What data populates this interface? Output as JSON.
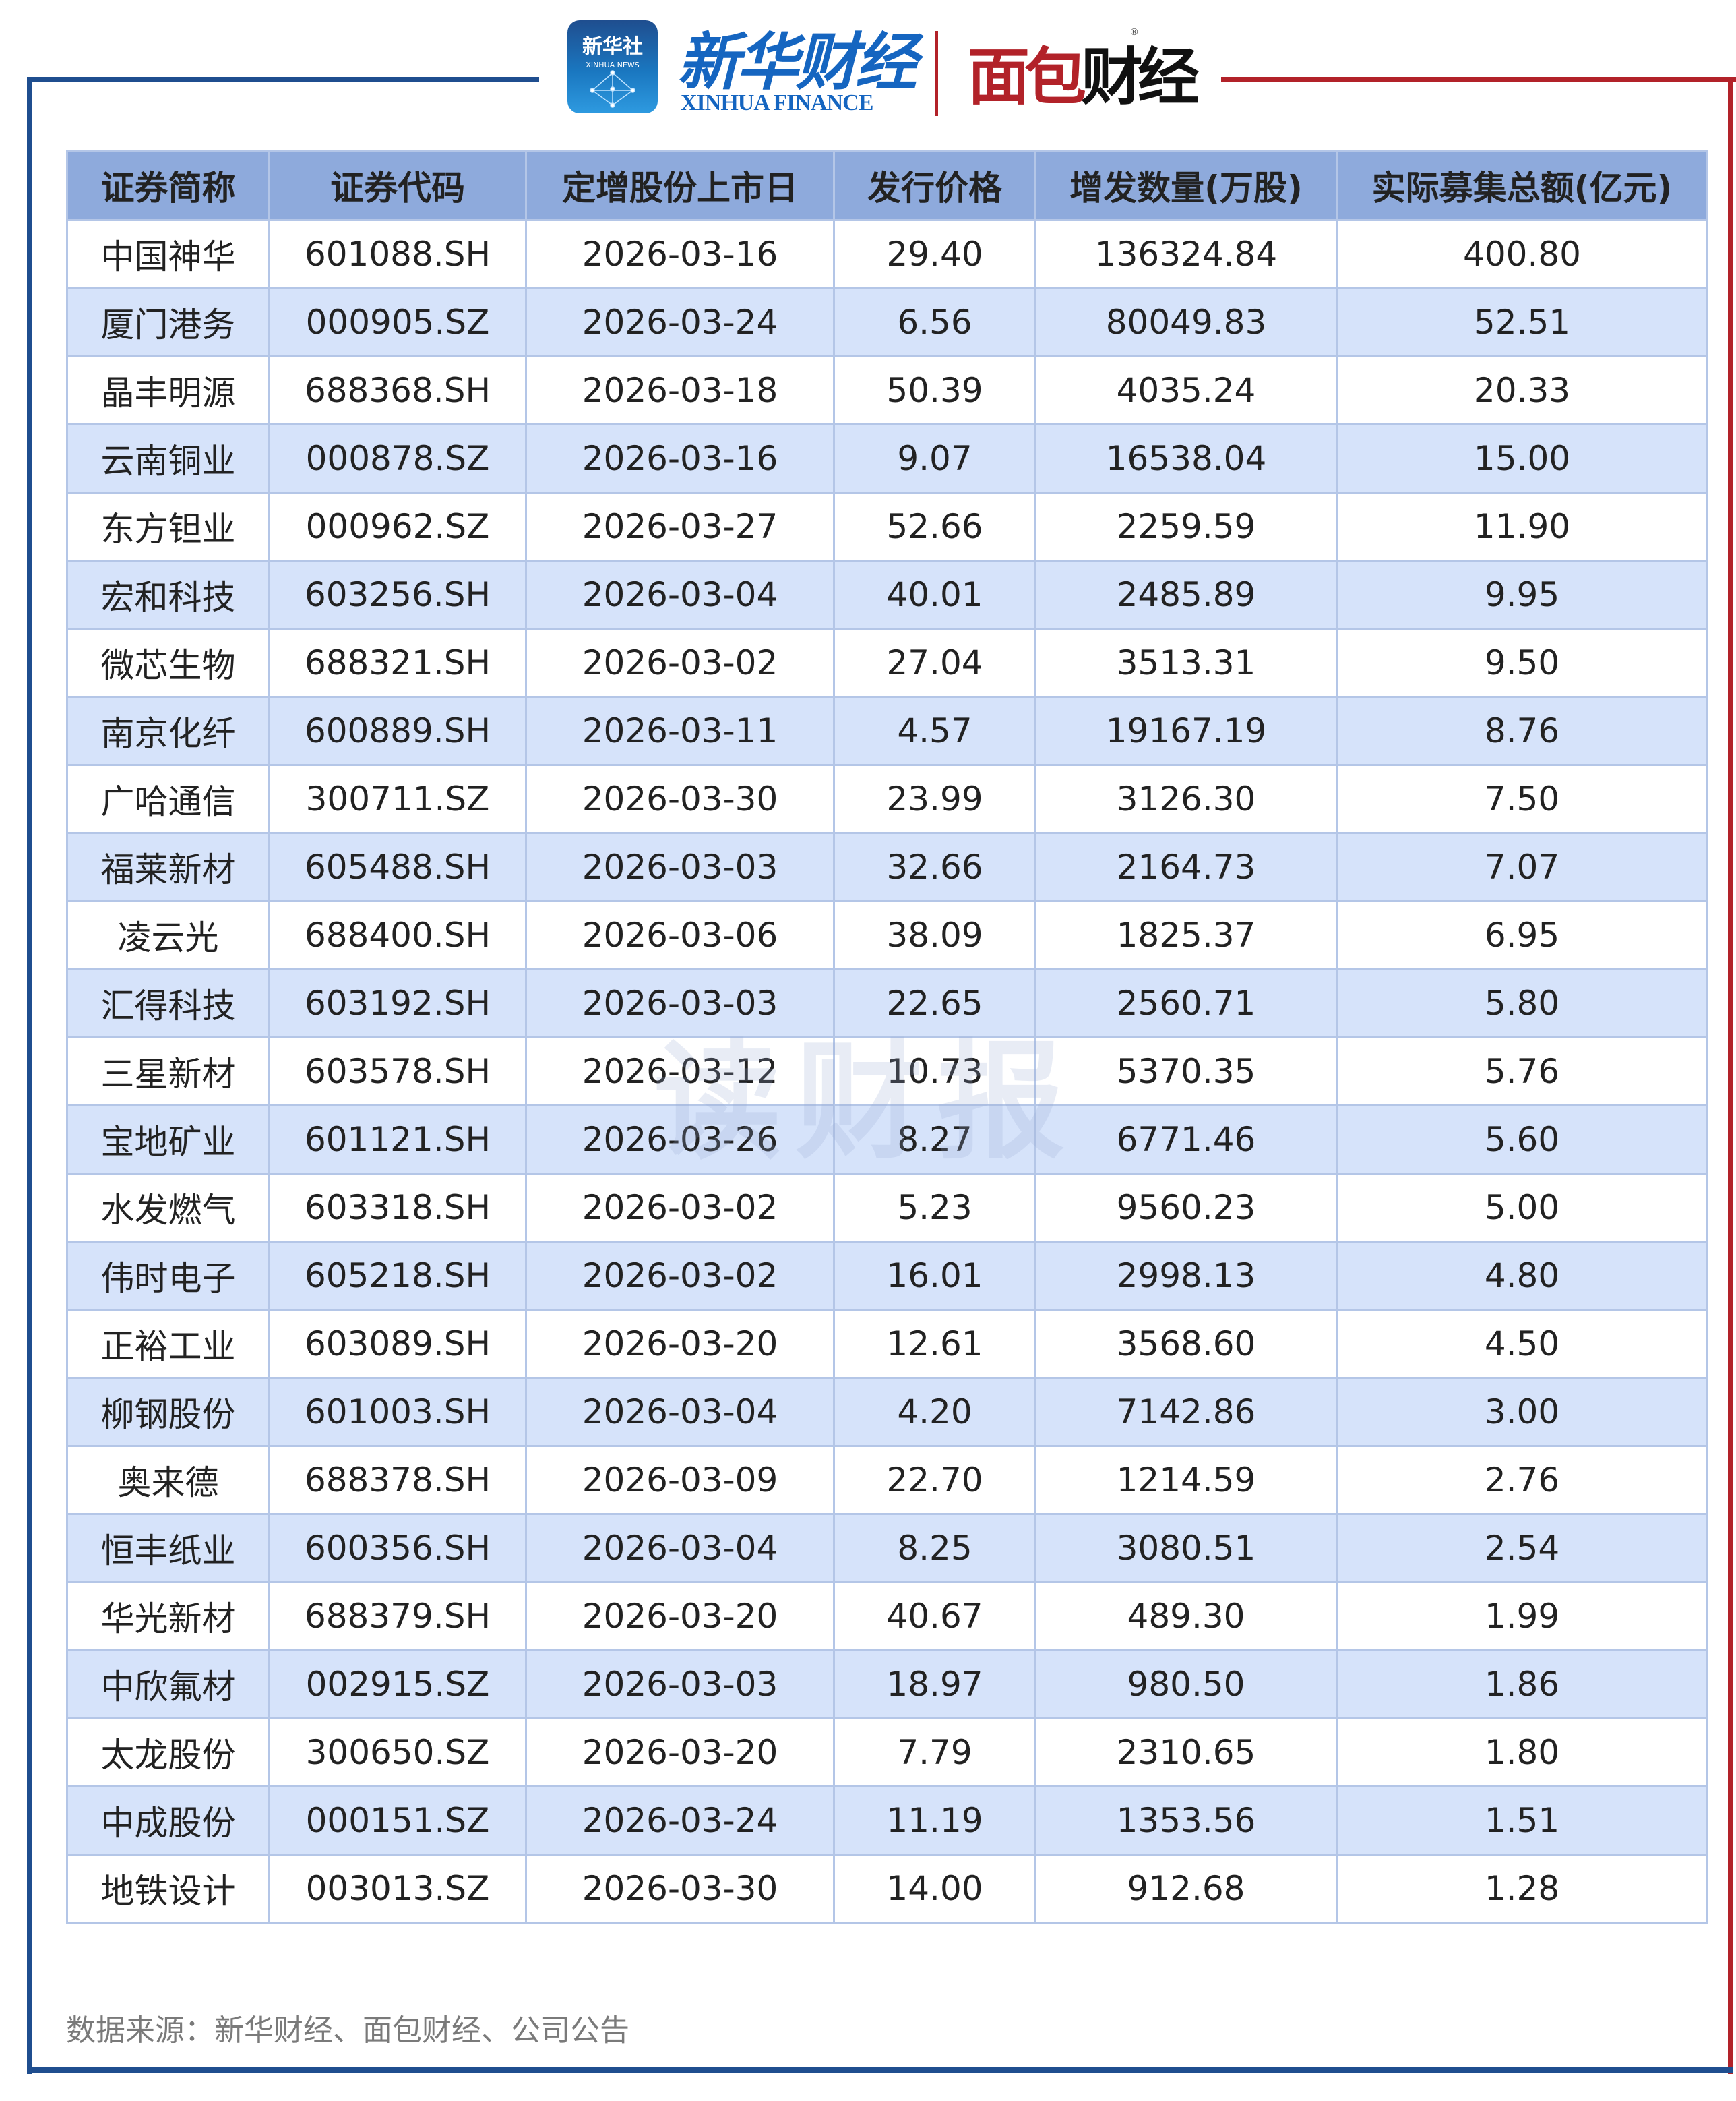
{
  "header": {
    "xinhua_badge_cn": "新华社",
    "xinhua_badge_en": "XINHUA NEWS",
    "xinhua_finance_cn": "新华财经",
    "xinhua_finance_en": "XINHUA FINANCE",
    "mianbao_logo": "面包财经",
    "registered_mark": "®"
  },
  "table": {
    "columns": [
      "证券简称",
      "证券代码",
      "定增股份上市日",
      "发行价格",
      "增发数量(万股)",
      "实际募集总额(亿元)"
    ],
    "rows": [
      [
        "中国神华",
        "601088.SH",
        "2026-03-16",
        "29.40",
        "136324.84",
        "400.80"
      ],
      [
        "厦门港务",
        "000905.SZ",
        "2026-03-24",
        "6.56",
        "80049.83",
        "52.51"
      ],
      [
        "晶丰明源",
        "688368.SH",
        "2026-03-18",
        "50.39",
        "4035.24",
        "20.33"
      ],
      [
        "云南铜业",
        "000878.SZ",
        "2026-03-16",
        "9.07",
        "16538.04",
        "15.00"
      ],
      [
        "东方钽业",
        "000962.SZ",
        "2026-03-27",
        "52.66",
        "2259.59",
        "11.90"
      ],
      [
        "宏和科技",
        "603256.SH",
        "2026-03-04",
        "40.01",
        "2485.89",
        "9.95"
      ],
      [
        "微芯生物",
        "688321.SH",
        "2026-03-02",
        "27.04",
        "3513.31",
        "9.50"
      ],
      [
        "南京化纤",
        "600889.SH",
        "2026-03-11",
        "4.57",
        "19167.19",
        "8.76"
      ],
      [
        "广哈通信",
        "300711.SZ",
        "2026-03-30",
        "23.99",
        "3126.30",
        "7.50"
      ],
      [
        "福莱新材",
        "605488.SH",
        "2026-03-03",
        "32.66",
        "2164.73",
        "7.07"
      ],
      [
        "凌云光",
        "688400.SH",
        "2026-03-06",
        "38.09",
        "1825.37",
        "6.95"
      ],
      [
        "汇得科技",
        "603192.SH",
        "2026-03-03",
        "22.65",
        "2560.71",
        "5.80"
      ],
      [
        "三星新材",
        "603578.SH",
        "2026-03-12",
        "10.73",
        "5370.35",
        "5.76"
      ],
      [
        "宝地矿业",
        "601121.SH",
        "2026-03-26",
        "8.27",
        "6771.46",
        "5.60"
      ],
      [
        "水发燃气",
        "603318.SH",
        "2026-03-02",
        "5.23",
        "9560.23",
        "5.00"
      ],
      [
        "伟时电子",
        "605218.SH",
        "2026-03-02",
        "16.01",
        "2998.13",
        "4.80"
      ],
      [
        "正裕工业",
        "603089.SH",
        "2026-03-20",
        "12.61",
        "3568.60",
        "4.50"
      ],
      [
        "柳钢股份",
        "601003.SH",
        "2026-03-04",
        "4.20",
        "7142.86",
        "3.00"
      ],
      [
        "奥来德",
        "688378.SH",
        "2026-03-09",
        "22.70",
        "1214.59",
        "2.76"
      ],
      [
        "恒丰纸业",
        "600356.SH",
        "2026-03-04",
        "8.25",
        "3080.51",
        "2.54"
      ],
      [
        "华光新材",
        "688379.SH",
        "2026-03-20",
        "40.67",
        "489.30",
        "1.99"
      ],
      [
        "中欣氟材",
        "002915.SZ",
        "2026-03-03",
        "18.97",
        "980.50",
        "1.86"
      ],
      [
        "太龙股份",
        "300650.SZ",
        "2026-03-20",
        "7.79",
        "2310.65",
        "1.80"
      ],
      [
        "中成股份",
        "000151.SZ",
        "2026-03-24",
        "11.19",
        "1353.56",
        "1.51"
      ],
      [
        "地铁设计",
        "003013.SZ",
        "2026-03-30",
        "14.00",
        "912.68",
        "1.28"
      ]
    ]
  },
  "watermark": "读财报",
  "footer": {
    "source": "数据来源：新华财经、面包财经、公司公告"
  },
  "colors": {
    "frame_blue": "#1f4e8f",
    "frame_red": "#b22229",
    "header_bg": "#8eaadc",
    "alt_row_bg": "#d6e3fa",
    "grid": "#b4c6e7"
  }
}
